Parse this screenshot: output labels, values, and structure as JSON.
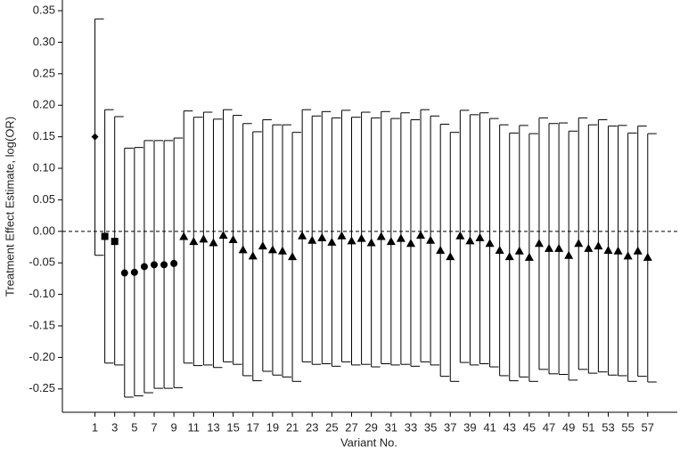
{
  "chart_data": {
    "type": "errorbar",
    "x_label": "Variant No.",
    "y_label": "Treatment Effect Estimate, log(OR)",
    "xlim": [
      -2.3,
      60
    ],
    "xticks": [
      1,
      3,
      5,
      7,
      9,
      11,
      13,
      15,
      17,
      19,
      21,
      23,
      25,
      27,
      29,
      31,
      33,
      35,
      37,
      39,
      41,
      43,
      45,
      47,
      49,
      51,
      53,
      55,
      57
    ],
    "ylim": [
      -0.287,
      0.367
    ],
    "yticks": [
      0.35,
      {
        "value": 0.3,
        "label": "0.30"
      },
      0.25,
      {
        "value": 0.2,
        "label": "0.20"
      },
      0.15,
      {
        "value": 0.1,
        "label": "0.10"
      },
      0.05,
      {
        "value": 0,
        "label": "0.00"
      },
      -0.05,
      {
        "value": -0.1,
        "label": "-0.10"
      },
      -0.15,
      {
        "value": -0.2,
        "label": "-0.20"
      },
      -0.25
    ],
    "reference_line": {
      "value": 0,
      "style": "dashed"
    },
    "series": [
      {
        "marker": "diamond",
        "color": "#000000",
        "x": [
          1
        ],
        "values": [
          0.15
        ],
        "upper": [
          0.337
        ],
        "lower": [
          -0.038
        ]
      },
      {
        "marker": "square",
        "color": "#000000",
        "x": [
          2,
          3
        ],
        "values": [
          -0.008,
          -0.016
        ],
        "upper": [
          0.193,
          0.182
        ],
        "lower": [
          -0.209,
          -0.212
        ]
      },
      {
        "marker": "circle",
        "color": "#000000",
        "x": [
          4,
          5,
          6,
          7,
          8,
          9
        ],
        "values": [
          -0.066,
          -0.065,
          -0.056,
          -0.053,
          -0.053,
          -0.051
        ],
        "upper": [
          0.132,
          0.133,
          0.144,
          0.144,
          0.144,
          0.148
        ],
        "lower": [
          -0.263,
          -0.261,
          -0.256,
          -0.249,
          -0.249,
          -0.248
        ]
      },
      {
        "marker": "triangle",
        "color": "#000000",
        "x": [
          10,
          11,
          12,
          13,
          14,
          15,
          16,
          17,
          18,
          19,
          20,
          21,
          22,
          23,
          24,
          25,
          26,
          27,
          28,
          29,
          30,
          31,
          32,
          33,
          34,
          35,
          36,
          37,
          38,
          39,
          40,
          41,
          42,
          43,
          44,
          45,
          46,
          47,
          48,
          49,
          50,
          51,
          52,
          53,
          54,
          55,
          56,
          57
        ],
        "values": [
          -0.008,
          -0.016,
          -0.012,
          -0.018,
          -0.006,
          -0.013,
          -0.029,
          -0.039,
          -0.023,
          -0.029,
          -0.031,
          -0.04,
          -0.007,
          -0.014,
          -0.01,
          -0.017,
          -0.007,
          -0.015,
          -0.011,
          -0.018,
          -0.008,
          -0.016,
          -0.011,
          -0.019,
          -0.006,
          -0.014,
          -0.03,
          -0.04,
          -0.007,
          -0.015,
          -0.01,
          -0.019,
          -0.03,
          -0.04,
          -0.031,
          -0.041,
          -0.019,
          -0.027,
          -0.027,
          -0.038,
          -0.019,
          -0.027,
          -0.023,
          -0.03,
          -0.031,
          -0.039,
          -0.031,
          -0.041
        ],
        "upper": [
          0.191,
          0.181,
          0.189,
          0.178,
          0.193,
          0.184,
          0.171,
          0.158,
          0.177,
          0.169,
          0.169,
          0.157,
          0.193,
          0.183,
          0.19,
          0.18,
          0.192,
          0.181,
          0.189,
          0.18,
          0.19,
          0.179,
          0.188,
          0.177,
          0.193,
          0.183,
          0.17,
          0.157,
          0.192,
          0.185,
          0.188,
          0.179,
          0.169,
          0.156,
          0.168,
          0.155,
          0.18,
          0.171,
          0.172,
          0.159,
          0.18,
          0.169,
          0.177,
          0.167,
          0.168,
          0.156,
          0.167,
          0.155
        ],
        "lower": [
          -0.209,
          -0.213,
          -0.212,
          -0.216,
          -0.207,
          -0.211,
          -0.229,
          -0.237,
          -0.222,
          -0.228,
          -0.231,
          -0.238,
          -0.207,
          -0.211,
          -0.21,
          -0.214,
          -0.207,
          -0.212,
          -0.211,
          -0.215,
          -0.21,
          -0.212,
          -0.211,
          -0.214,
          -0.207,
          -0.212,
          -0.23,
          -0.238,
          -0.208,
          -0.212,
          -0.21,
          -0.215,
          -0.229,
          -0.237,
          -0.231,
          -0.238,
          -0.219,
          -0.226,
          -0.227,
          -0.236,
          -0.219,
          -0.225,
          -0.223,
          -0.228,
          -0.229,
          -0.238,
          -0.23,
          -0.239
        ]
      }
    ]
  }
}
